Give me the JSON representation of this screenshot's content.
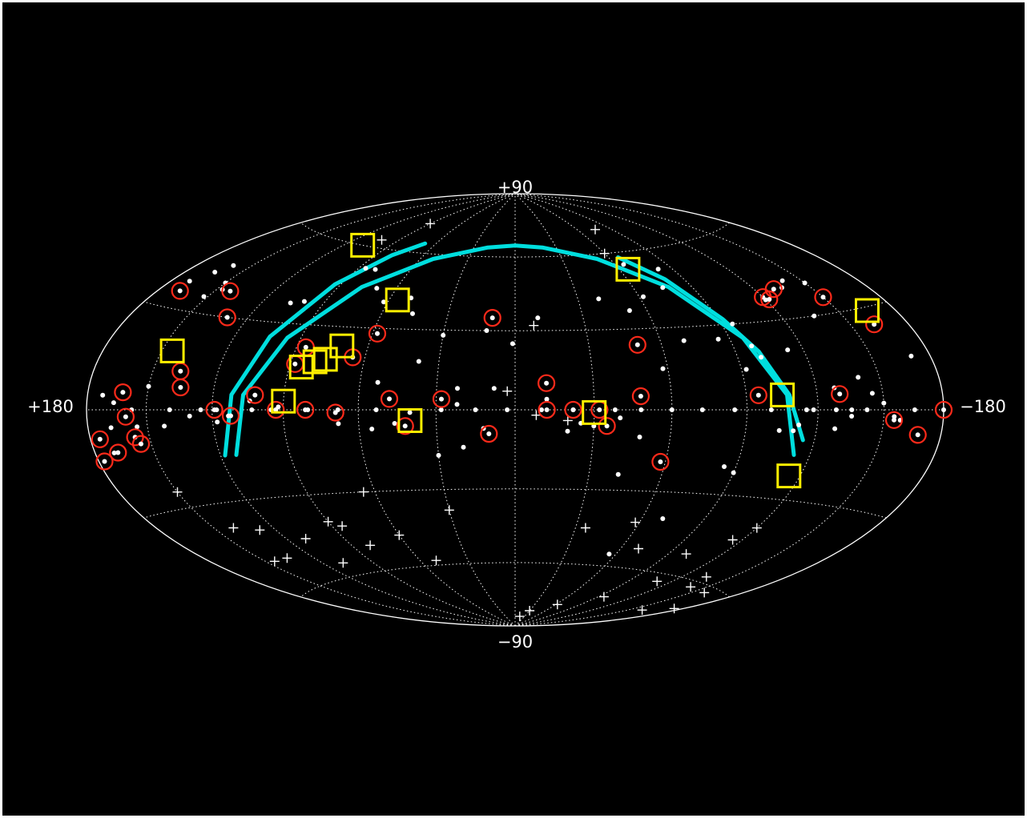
{
  "colors": {
    "background": "#000000",
    "grid": "#ffffff",
    "source": "#ffffff",
    "circle_marker": "#ff2a1a",
    "square_marker": "#ffee00",
    "arc": "#00dede"
  },
  "chart_data": {
    "type": "scatter",
    "projection": "hammer-aitoff",
    "title": "",
    "xlabel": "",
    "ylabel": "",
    "xlim": [
      180,
      -180
    ],
    "ylim": [
      -90,
      90
    ],
    "grid": true,
    "grid_lon_step": 30,
    "grid_lat_step": 30,
    "axis_labels": {
      "top": "+90",
      "bottom": "−90",
      "left": "+180",
      "right": "−180"
    },
    "dots": [
      [
        160,
        45
      ],
      [
        164,
        42
      ],
      [
        170,
        38
      ],
      [
        150,
        40
      ],
      [
        147,
        38
      ],
      [
        152,
        35
      ],
      [
        106,
        37
      ],
      [
        150,
        7
      ],
      [
        157,
        0
      ],
      [
        166,
        2
      ],
      [
        172,
        4
      ],
      [
        168,
        -5
      ],
      [
        170,
        -12
      ],
      [
        155,
        -5
      ],
      [
        139,
        0
      ],
      [
        125,
        0
      ],
      [
        130,
        -2
      ],
      [
        118,
        0
      ],
      [
        103,
        0
      ],
      [
        93,
        0
      ],
      [
        80,
        0
      ],
      [
        68,
        0
      ],
      [
        53,
        0
      ],
      [
        40,
        -1
      ],
      [
        28,
        0
      ],
      [
        15,
        0
      ],
      [
        3,
        0
      ],
      [
        -10,
        0
      ],
      [
        -22,
        0
      ],
      [
        -38,
        0
      ],
      [
        -48,
        0
      ],
      [
        -60,
        0
      ],
      [
        -72,
        0
      ],
      [
        -85,
        0
      ],
      [
        -100,
        0
      ],
      [
        -115,
        0
      ],
      [
        -128,
        0
      ],
      [
        -142,
        0
      ],
      [
        -155,
        -2
      ],
      [
        -165,
        0
      ],
      [
        22,
        8
      ],
      [
        8,
        8
      ],
      [
        1,
        25
      ],
      [
        -12,
        4
      ],
      [
        -20,
        -8
      ],
      [
        -40,
        -3
      ],
      [
        -48,
        -10
      ],
      [
        -30,
        -6
      ],
      [
        -58,
        15
      ],
      [
        -70,
        25
      ],
      [
        -85,
        25
      ],
      [
        -95,
        30
      ],
      [
        -98,
        22
      ],
      [
        -113,
        20
      ],
      [
        -136,
        30
      ],
      [
        -140,
        42
      ],
      [
        -135,
        40
      ],
      [
        -120,
        37
      ],
      [
        -150,
        40
      ],
      [
        -170,
        15
      ],
      [
        -145,
        5
      ],
      [
        -135,
        0
      ],
      [
        -128,
        7
      ],
      [
        -118,
        0
      ],
      [
        -104,
        -7
      ],
      [
        -90,
        -22
      ],
      [
        -85,
        -20
      ],
      [
        -70,
        -40
      ],
      [
        -56,
        -55
      ],
      [
        -42,
        -24
      ],
      [
        12,
        -7
      ],
      [
        30,
        -17
      ],
      [
        55,
        -7
      ],
      [
        53,
        10
      ],
      [
        100,
        38
      ],
      [
        70,
        45
      ],
      [
        86,
        52
      ],
      [
        80,
        52
      ],
      [
        62,
        40
      ],
      [
        38,
        18
      ],
      [
        30,
        28
      ],
      [
        12,
        30
      ],
      [
        -10,
        35
      ],
      [
        -40,
        42
      ],
      [
        -52,
        37
      ],
      [
        -62,
        42
      ],
      [
        -75,
        45
      ],
      [
        -82,
        52
      ],
      [
        -65,
        55
      ],
      [
        118,
        -4
      ],
      [
        104,
        3
      ],
      [
        46,
        -5
      ],
      [
        22,
        2
      ],
      [
        68,
        -5
      ],
      [
        95,
        0
      ],
      [
        50,
        42
      ],
      [
        46,
        36
      ],
      [
        92,
        1
      ],
      [
        -25,
        -5
      ],
      [
        -110,
        -7
      ],
      [
        -158,
        -3
      ],
      [
        -112,
        -5
      ],
      [
        -128,
        -6
      ],
      [
        -135,
        -2
      ],
      [
        -150,
        2
      ],
      [
        -140,
        10
      ],
      [
        -100,
        18
      ],
      [
        -92,
        14
      ],
      [
        20,
        -14
      ],
      [
        113,
        -2
      ],
      [
        142,
        -5
      ]
    ],
    "plus_markers": [
      [
        90,
        72
      ],
      [
        102,
        63
      ],
      [
        -60,
        60
      ],
      [
        -76,
        70
      ],
      [
        -8,
        32
      ],
      [
        -20,
        -4
      ],
      [
        -8,
        -2
      ],
      [
        3,
        7
      ],
      [
        65,
        -30
      ],
      [
        150,
        -25
      ],
      [
        128,
        -40
      ],
      [
        135,
        -50
      ],
      [
        145,
        -50
      ],
      [
        140,
        -38
      ],
      [
        110,
        -45
      ],
      [
        108,
        -55
      ],
      [
        90,
        -40
      ],
      [
        85,
        -42
      ],
      [
        80,
        -50
      ],
      [
        60,
        -47
      ],
      [
        30,
        -38
      ],
      [
        -35,
        -45
      ],
      [
        -58,
        -42
      ],
      [
        -70,
        -52
      ],
      [
        -100,
        -52
      ],
      [
        -115,
        -45
      ],
      [
        -120,
        -40
      ],
      [
        -135,
        -58
      ],
      [
        -140,
        -62
      ],
      [
        50,
        -58
      ],
      [
        -110,
        -63
      ],
      [
        -158,
        -62
      ],
      [
        -175,
        -68
      ],
      [
        -160,
        -72
      ],
      [
        -95,
        -72
      ],
      [
        -62,
        -78
      ],
      [
        -30,
        -82
      ],
      [
        -15,
        -85
      ]
    ],
    "circle_markers": [
      [
        168,
        35
      ],
      [
        142,
        38
      ],
      [
        130,
        30
      ],
      [
        162,
        5
      ],
      [
        160,
        -2
      ],
      [
        175,
        -8
      ],
      [
        177,
        -14
      ],
      [
        168,
        -12
      ],
      [
        157,
        -8
      ],
      [
        155,
        -10
      ],
      [
        137,
        12
      ],
      [
        135,
        7
      ],
      [
        119,
        0
      ],
      [
        112,
        -2
      ],
      [
        102,
        5
      ],
      [
        81,
        0
      ],
      [
        93,
        0
      ],
      [
        69,
        -1
      ],
      [
        65,
        19
      ],
      [
        86,
        22
      ],
      [
        88,
        16
      ],
      [
        58,
        28
      ],
      [
        48,
        4
      ],
      [
        42,
        -6
      ],
      [
        28,
        4
      ],
      [
        10,
        35
      ],
      [
        10,
        -9
      ],
      [
        -12,
        10
      ],
      [
        -12,
        0
      ],
      [
        -22,
        0
      ],
      [
        -32,
        0
      ],
      [
        -35,
        -6
      ],
      [
        -48,
        5
      ],
      [
        -58,
        -19
      ],
      [
        -50,
        24
      ],
      [
        -120,
        38
      ],
      [
        -122,
        37
      ],
      [
        -130,
        40
      ],
      [
        -95,
        5
      ],
      [
        -130,
        5
      ],
      [
        -150,
        35
      ],
      [
        -162,
        25
      ],
      [
        -155,
        -3
      ],
      [
        -168,
        -7
      ],
      [
        -180,
        0
      ]
    ],
    "square_markers": [
      [
        108,
        60
      ],
      [
        56,
        41
      ],
      [
        145,
        18
      ],
      [
        90,
        3
      ],
      [
        80,
        17
      ],
      [
        85,
        15
      ],
      [
        71,
        23
      ],
      [
        76,
        18
      ],
      [
        -65,
        53
      ],
      [
        -105,
        5
      ],
      [
        -115,
        -22
      ],
      [
        40,
        -4
      ],
      [
        -30,
        -1
      ],
      [
        -165,
        29
      ]
    ],
    "arcs": [
      [
        [
          118,
          -15
        ],
        [
          112,
          5
        ],
        [
          104,
          25
        ],
        [
          93,
          45
        ],
        [
          80,
          58
        ],
        [
          68,
          64
        ]
      ],
      [
        [
          113,
          -15
        ],
        [
          107,
          5
        ],
        [
          96,
          25
        ],
        [
          78,
          45
        ],
        [
          52,
          58
        ],
        [
          20,
          64
        ],
        [
          0,
          65
        ],
        [
          -20,
          64
        ],
        [
          -52,
          58
        ],
        [
          -78,
          45
        ],
        [
          -96,
          25
        ],
        [
          -107,
          5
        ],
        [
          -113,
          -15
        ]
      ],
      [
        [
          -115,
          -10
        ],
        [
          -108,
          5
        ],
        [
          -100,
          20
        ],
        [
          -92,
          32
        ],
        [
          -80,
          48
        ],
        [
          -66,
          58
        ]
      ]
    ]
  }
}
